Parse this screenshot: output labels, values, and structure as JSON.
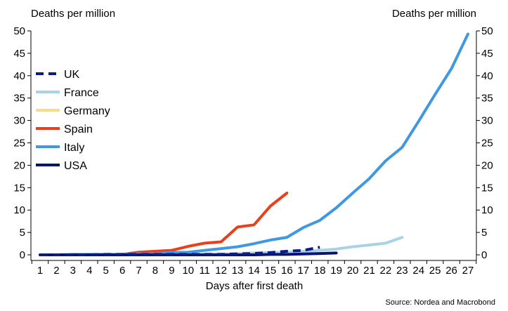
{
  "chart_data": {
    "type": "line",
    "title": "",
    "ylabel_left": "Deaths per million",
    "ylabel_right": "Deaths per million",
    "xlabel": "Days after first death",
    "source": "Source: Nordea and Macrobond",
    "x_categories": [
      "1",
      "2",
      "3",
      "4",
      "5",
      "6",
      "7",
      "8",
      "9",
      "10",
      "11",
      "12",
      "13",
      "14",
      "15",
      "16",
      "17",
      "18",
      "19",
      "20",
      "21",
      "22",
      "23",
      "24",
      "25",
      "26",
      "27"
    ],
    "ylim": [
      0,
      50
    ],
    "y_ticks": [
      "0",
      "5",
      "10",
      "15",
      "20",
      "25",
      "30",
      "35",
      "40",
      "45",
      "50"
    ],
    "grid": false,
    "legend_position": "left-middle",
    "series": [
      {
        "name": "UK",
        "color": "#0d1a8a",
        "style": "dashed",
        "x": [
          1,
          2,
          3,
          4,
          5,
          6,
          7,
          8,
          9,
          10,
          11,
          12,
          13,
          14,
          15,
          16,
          17,
          18
        ],
        "values": [
          0.0,
          0.0,
          0.0,
          0.0,
          0.1,
          0.1,
          0.1,
          0.1,
          0.1,
          0.1,
          0.1,
          0.1,
          0.2,
          0.3,
          0.5,
          0.8,
          1.0,
          1.7
        ]
      },
      {
        "name": "France",
        "color": "#a6d4e6",
        "style": "solid",
        "x": [
          1,
          2,
          3,
          4,
          5,
          6,
          7,
          8,
          9,
          10,
          11,
          12,
          13,
          14,
          15,
          16,
          17,
          18,
          19,
          20,
          21,
          22,
          23
        ],
        "values": [
          0.0,
          0.0,
          0.0,
          0.0,
          0.0,
          0.0,
          0.0,
          0.0,
          0.1,
          0.1,
          0.2,
          0.2,
          0.3,
          0.4,
          0.5,
          0.6,
          0.8,
          1.0,
          1.3,
          1.8,
          2.2,
          2.6,
          3.9
        ]
      },
      {
        "name": "Germany",
        "color": "#f5dc8a",
        "style": "solid",
        "x": [
          1,
          2,
          3,
          4,
          5,
          6,
          7,
          8,
          9,
          10,
          11,
          12,
          13,
          14
        ],
        "values": [
          0.0,
          0.0,
          0.0,
          0.0,
          0.0,
          0.0,
          0.0,
          0.0,
          0.0,
          0.0,
          0.0,
          0.0,
          0.0,
          0.0
        ]
      },
      {
        "name": "Spain",
        "color": "#e8401c",
        "style": "solid",
        "x": [
          6,
          7,
          8,
          9,
          10,
          11,
          12,
          13,
          14,
          15,
          16
        ],
        "values": [
          0.1,
          0.6,
          0.8,
          1.0,
          1.9,
          2.6,
          2.9,
          6.2,
          6.7,
          10.9,
          13.8
        ]
      },
      {
        "name": "Italy",
        "color": "#3f98e0",
        "style": "solid",
        "x": [
          1,
          2,
          3,
          4,
          5,
          6,
          7,
          8,
          9,
          10,
          11,
          12,
          13,
          14,
          15,
          16,
          17,
          18,
          19,
          20,
          21,
          22,
          23,
          24,
          25,
          26,
          27
        ],
        "values": [
          0.0,
          0.0,
          0.1,
          0.1,
          0.1,
          0.1,
          0.2,
          0.3,
          0.5,
          0.6,
          1.0,
          1.4,
          1.8,
          2.5,
          3.3,
          3.9,
          6.1,
          7.7,
          10.5,
          13.8,
          17.0,
          21.0,
          24.0,
          29.8,
          35.8,
          41.6,
          49.3
        ]
      },
      {
        "name": "USA",
        "color": "#0a1470",
        "style": "solid",
        "x": [
          1,
          2,
          3,
          4,
          5,
          6,
          7,
          8,
          9,
          10,
          11,
          12,
          13,
          14,
          15,
          16,
          17,
          18,
          19
        ],
        "values": [
          0.0,
          0.0,
          0.0,
          0.0,
          0.0,
          0.0,
          0.0,
          0.0,
          0.0,
          0.0,
          0.0,
          0.0,
          0.0,
          0.0,
          0.1,
          0.1,
          0.2,
          0.3,
          0.4
        ]
      }
    ]
  }
}
